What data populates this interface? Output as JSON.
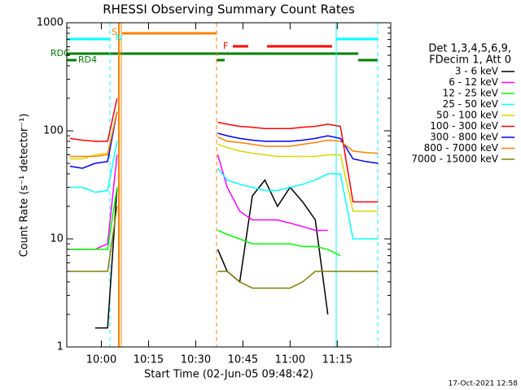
{
  "chart_data": {
    "type": "line",
    "title": "RHESSI Observing Summary Count Rates",
    "x_label": "Start Time (02-Jun-05 09:48:42)",
    "y_label": "Count Rate (s⁻¹ detector⁻¹)",
    "log_y": true,
    "ylim": [
      1,
      1000
    ],
    "yticks": [
      1,
      10,
      100,
      1000
    ],
    "xlim": [
      "09:49",
      "11:32"
    ],
    "xticks": [
      "10:00",
      "10:15",
      "10:30",
      "10:45",
      "11:00",
      "11:15"
    ],
    "legend_title": [
      "Det 1,3,4,5,6,9,",
      "FDecim 1, Att 0"
    ],
    "annotations": [
      "S",
      "N",
      "F",
      "RDG",
      "RD4"
    ],
    "footer": "17-Oct-2021 12:58",
    "x": [
      "09:50",
      "09:54",
      "09:58",
      "10:02",
      "10:05",
      "10:20",
      "10:37",
      "10:40",
      "10:44",
      "10:48",
      "10:52",
      "10:56",
      "11:00",
      "11:04",
      "11:08",
      "11:12",
      "11:16",
      "11:20",
      "11:24",
      "11:28"
    ],
    "series": [
      {
        "name": "3 - 6 keV",
        "color": "#000000",
        "values": [
          null,
          null,
          1.5,
          1.5,
          30,
          null,
          8,
          5,
          4,
          25,
          35,
          20,
          30,
          22,
          15,
          2,
          null,
          null,
          null,
          null
        ]
      },
      {
        "name": "6 - 12 keV",
        "color": "#ff00ff",
        "values": [
          8,
          8,
          8,
          9,
          60,
          null,
          60,
          30,
          18,
          15,
          15,
          15,
          14,
          13,
          12,
          12,
          null,
          null,
          null,
          null
        ]
      },
      {
        "name": "12 - 25 keV",
        "color": "#00ff00",
        "values": [
          8,
          8,
          8,
          8,
          30,
          null,
          12,
          11,
          10,
          9,
          9,
          9,
          9,
          8.5,
          8.5,
          8,
          7,
          null,
          null,
          null
        ]
      },
      {
        "name": "25 - 50 keV",
        "color": "#00ffff",
        "values": [
          30,
          30,
          27,
          28,
          80,
          null,
          45,
          35,
          32,
          30,
          28,
          28,
          30,
          32,
          35,
          40,
          40,
          10,
          10,
          10
        ]
      },
      {
        "name": "50 - 100 keV",
        "color": "#d8d800",
        "values": [
          55,
          55,
          60,
          62,
          150,
          null,
          75,
          70,
          65,
          62,
          60,
          58,
          58,
          58,
          58,
          60,
          60,
          18,
          18,
          18
        ]
      },
      {
        "name": "100 - 300 keV",
        "color": "#ff0000",
        "values": [
          85,
          82,
          80,
          80,
          200,
          null,
          120,
          115,
          110,
          108,
          105,
          105,
          105,
          108,
          110,
          115,
          110,
          22,
          22,
          22
        ]
      },
      {
        "name": "300 - 800 keV",
        "color": "#0000ff",
        "values": [
          47,
          45,
          50,
          52,
          150,
          null,
          95,
          90,
          85,
          82,
          80,
          80,
          80,
          82,
          85,
          90,
          85,
          55,
          52,
          50
        ]
      },
      {
        "name": "800 - 7000 keV",
        "color": "#ff8000",
        "values": [
          58,
          58,
          58,
          60,
          150,
          null,
          88,
          80,
          78,
          75,
          72,
          72,
          72,
          75,
          78,
          82,
          80,
          65,
          63,
          62
        ]
      },
      {
        "name": "7000 - 15000 keV",
        "color": "#808000",
        "values": [
          5,
          5,
          5,
          5,
          20,
          null,
          5,
          5,
          4,
          3.5,
          3.5,
          3.5,
          3.5,
          4,
          5,
          5,
          5,
          5,
          5,
          5
        ]
      }
    ]
  }
}
